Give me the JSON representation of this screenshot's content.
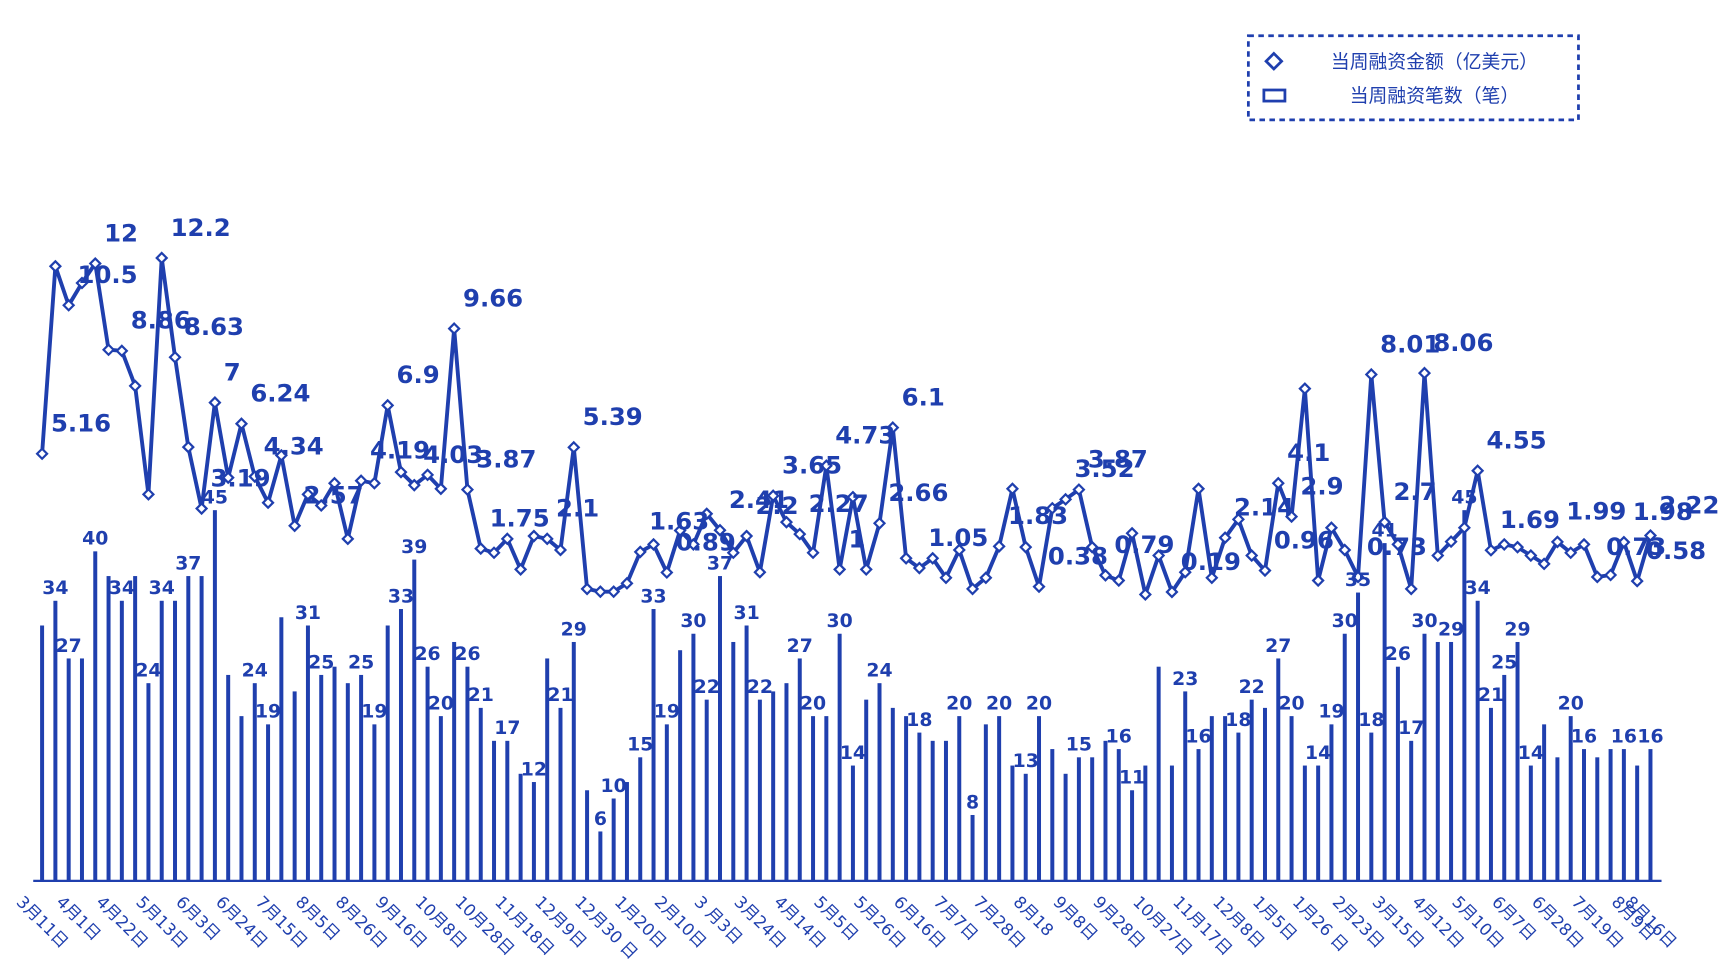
{
  "chart_data": {
    "type": "combo",
    "legend": "top-right",
    "categories": [
      "3月11日",
      null,
      null,
      "4月1日",
      null,
      null,
      "4月22日",
      null,
      null,
      "5月13日",
      null,
      null,
      "6月3日",
      null,
      null,
      "6月24日",
      null,
      null,
      "7月15日",
      null,
      null,
      "8月5日",
      null,
      null,
      "8月26日",
      null,
      null,
      "9月16日",
      null,
      null,
      "10月8日",
      null,
      null,
      "10月28日",
      null,
      null,
      "11月18日",
      null,
      null,
      "12月9日",
      null,
      null,
      "12月30 日",
      null,
      null,
      "1月20日",
      null,
      null,
      "2月10日",
      null,
      null,
      "3 月3日",
      null,
      null,
      "3月24日",
      null,
      null,
      "4月14日",
      null,
      null,
      "5月5日",
      null,
      null,
      "5月26日",
      null,
      null,
      "6月16日",
      null,
      null,
      "7月7日",
      null,
      null,
      "7月28日",
      null,
      null,
      "8月18",
      null,
      null,
      "9月8日",
      null,
      null,
      "9月28日",
      null,
      null,
      "10月27日",
      null,
      null,
      "11月17日",
      null,
      null,
      "12月8日",
      null,
      null,
      "1月5日",
      null,
      null,
      "1月26 日",
      null,
      null,
      "2月23日",
      null,
      null,
      "3月15日",
      null,
      null,
      "4月12日",
      null,
      null,
      "5月10日",
      null,
      null,
      "6月7日",
      null,
      null,
      "6月28日",
      null,
      null,
      "7月19日",
      null,
      null,
      "8月9日",
      "8月16日"
    ],
    "ylim": [
      0,
      80
    ],
    "y2lim": [
      -10.2,
      13.5
    ],
    "series": [
      {
        "name": "当周融资金额（亿美元）",
        "type": "line",
        "axis": "y2",
        "color": "#1f3fae",
        "values": [
          5.16,
          11.9,
          10.5,
          11.3,
          12,
          8.9,
          8.86,
          7.6,
          3.7,
          12.2,
          8.63,
          5.4,
          3.19,
          7,
          4.3,
          6.24,
          4.34,
          3.4,
          5.1,
          2.57,
          3.7,
          3.3,
          4.1,
          2.1,
          4.19,
          4.1,
          6.9,
          4.5,
          4.03,
          4.4,
          3.9,
          9.66,
          3.87,
          1.75,
          1.6,
          2.1,
          1,
          2.2,
          2.1,
          1.7,
          5.39,
          0.3,
          0.2,
          0.2,
          0.5,
          1.63,
          1.9,
          0.89,
          2.4,
          1.9,
          3,
          2.41,
          1.6,
          2.2,
          0.9,
          3.65,
          2.7,
          2.27,
          1.6,
          4.73,
          1,
          3.6,
          1,
          2.66,
          6.1,
          1.4,
          1.05,
          1.4,
          0.7,
          1.7,
          0.3,
          0.7,
          1.83,
          3.9,
          1.8,
          0.38,
          3.2,
          3.52,
          3.87,
          1.8,
          0.79,
          0.6,
          2.3,
          0.1,
          1.5,
          0.19,
          0.9,
          3.9,
          0.7,
          2.14,
          2.8,
          1.5,
          0.96,
          4.1,
          2.9,
          7.5,
          0.6,
          2.5,
          1.7,
          0.73,
          8.01,
          2.7,
          1.9,
          0.3,
          8.06,
          1.5,
          2,
          2.5,
          4.55,
          1.69,
          1.9,
          1.8,
          1.5,
          1.2,
          1.99,
          1.6,
          1.9,
          0.73,
          0.8,
          1.98,
          0.58,
          2.22
        ],
        "value_labels": [
          "5.16",
          null,
          "10.5",
          null,
          "12",
          null,
          "8.86",
          null,
          null,
          "12.2",
          "8.63",
          null,
          "3.19",
          "7",
          null,
          "6.24",
          "4.34",
          null,
          null,
          "2.57",
          null,
          null,
          null,
          null,
          "4.19",
          null,
          "6.9",
          null,
          "4.03",
          null,
          null,
          "9.66",
          "3.87",
          "1.75",
          null,
          null,
          null,
          null,
          "2.1",
          null,
          "5.39",
          null,
          null,
          null,
          null,
          "1.63",
          null,
          "0.89",
          null,
          null,
          null,
          "2.41",
          null,
          "2.2",
          null,
          "3.65",
          null,
          "2.27",
          null,
          "4.73",
          "1",
          null,
          null,
          "2.66",
          "6.1",
          null,
          "1.05",
          null,
          null,
          null,
          null,
          null,
          "1.83",
          null,
          null,
          "0.38",
          null,
          "3.52",
          "3.87",
          null,
          "0.79",
          null,
          null,
          null,
          null,
          "0.19",
          null,
          null,
          null,
          "2.14",
          null,
          null,
          "0.96",
          "4.1",
          "2.9",
          null,
          null,
          null,
          null,
          "0.73",
          "8.01",
          "2.7",
          null,
          null,
          "8.06",
          null,
          null,
          null,
          "4.55",
          "1.69",
          null,
          null,
          null,
          null,
          "1.99",
          null,
          null,
          "0.73",
          null,
          "1.98",
          "0.58",
          "2.22"
        ]
      },
      {
        "name": "当周融资笔数（笔）",
        "type": "bar",
        "color": "#1f3fae",
        "values": [
          31,
          34,
          27,
          27,
          40,
          37,
          34,
          37,
          24,
          34,
          34,
          37,
          37,
          45,
          25,
          20,
          24,
          19,
          32,
          23,
          31,
          25,
          26,
          24,
          25,
          19,
          31,
          33,
          39,
          26,
          20,
          29,
          26,
          21,
          17,
          17,
          13,
          12,
          27,
          21,
          29,
          11,
          6,
          10,
          12,
          15,
          33,
          19,
          28,
          30,
          22,
          37,
          29,
          31,
          22,
          23,
          24,
          27,
          20,
          20,
          30,
          14,
          22,
          24,
          21,
          20,
          18,
          17,
          17,
          20,
          8,
          19,
          20,
          14,
          13,
          20,
          16,
          13,
          15,
          15,
          17,
          16,
          11,
          14,
          26,
          14,
          23,
          16,
          20,
          20,
          18,
          22,
          21,
          27,
          20,
          14,
          14,
          19,
          30,
          35,
          18,
          41,
          26,
          17,
          30,
          29,
          29,
          45,
          34,
          21,
          25,
          29,
          14,
          19,
          15,
          20,
          16,
          15,
          16,
          16,
          14,
          16
        ],
        "value_labels": [
          null,
          "34",
          "27",
          null,
          "40",
          null,
          "34",
          null,
          "24",
          "34",
          null,
          "37",
          null,
          "45",
          null,
          null,
          "24",
          "19",
          null,
          null,
          "31",
          "25",
          null,
          null,
          "25",
          "19",
          null,
          "33",
          "39",
          "26",
          "20",
          null,
          "26",
          "21",
          null,
          "17",
          null,
          "12",
          null,
          "21",
          "29",
          null,
          "6",
          "10",
          null,
          "15",
          "33",
          "19",
          null,
          "30",
          "22",
          "37",
          null,
          "31",
          "22",
          null,
          null,
          "27",
          "20",
          null,
          "30",
          "14",
          null,
          "24",
          null,
          null,
          "18",
          null,
          null,
          "20",
          "8",
          null,
          "20",
          null,
          "13",
          "20",
          null,
          null,
          "15",
          null,
          null,
          "16",
          "11",
          null,
          null,
          null,
          "23",
          "16",
          null,
          null,
          "18",
          "22",
          null,
          "27",
          "20",
          null,
          "14",
          "19",
          "30",
          "35",
          "18",
          "41",
          "26",
          "17",
          "30",
          null,
          "29",
          "45",
          "34",
          "21",
          "25",
          "29",
          "14",
          null,
          null,
          "20",
          "16",
          null,
          null,
          "16",
          null,
          "16"
        ]
      }
    ]
  }
}
